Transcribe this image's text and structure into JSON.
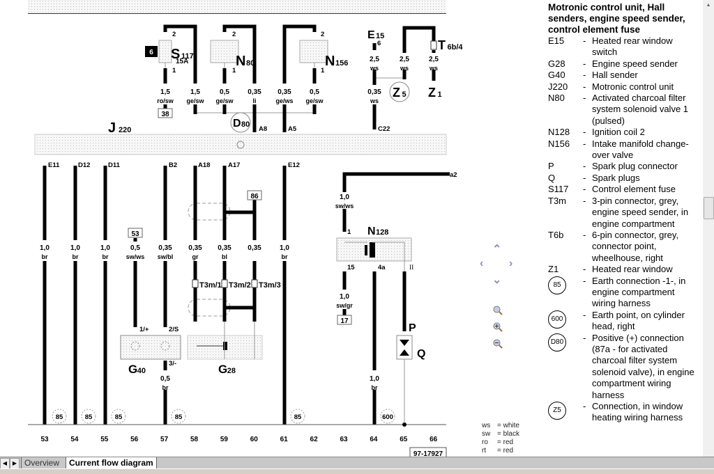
{
  "legend": {
    "title": "Motronic control unit, Hall senders, engine speed sender, control element fuse",
    "entries": [
      {
        "code": "E15",
        "desc": "Heated rear window switch"
      },
      {
        "code": "G28",
        "desc": "Engine speed sender"
      },
      {
        "code": "G40",
        "desc": "Hall sender"
      },
      {
        "code": "J220",
        "desc": "Motronic control unit"
      },
      {
        "code": "N80",
        "desc": "Activated charcoal filter system solenoid valve 1 (pulsed)"
      },
      {
        "code": "N128",
        "desc": "Ignition coil 2"
      },
      {
        "code": "N156",
        "desc": "Intake manifold change-over valve"
      },
      {
        "code": "P",
        "desc": "Spark plug connector"
      },
      {
        "code": "Q",
        "desc": "Spark plugs"
      },
      {
        "code": "S117",
        "desc": "Control element fuse"
      },
      {
        "code": "T3m",
        "desc": "3-pin connector, grey, engine speed sender, in engine compartment"
      },
      {
        "code": "T6b",
        "desc": "6-pin connector, grey, connector point, wheelhouse, right"
      },
      {
        "code": "Z1",
        "desc": "Heated rear window"
      }
    ],
    "circled_entries": [
      {
        "code": "85",
        "desc": "Earth connection -1-, in engine compartment wiring harness"
      },
      {
        "code": "600",
        "desc": "Earth point, on cylinder head, right"
      },
      {
        "code": "D80",
        "desc": "Positive (+) connection (87a - for activated charcoal filter system solenoid valve), in engine compartment wiring harness"
      },
      {
        "code": "Z5",
        "desc": "Connection, in window heating wiring harness"
      }
    ],
    "separator": "-"
  },
  "color_codes": [
    {
      "abbr": "ws",
      "name": "white"
    },
    {
      "abbr": "sw",
      "name": "black"
    },
    {
      "abbr": "ro",
      "name": "red"
    },
    {
      "abbr": "rt",
      "name": "red"
    }
  ],
  "diagram": {
    "components": {
      "s117": {
        "code": "S",
        "num": "117",
        "rating": "15A",
        "fuse_no": "6"
      },
      "n80": {
        "code": "N",
        "num": "80"
      },
      "n156": {
        "code": "N",
        "num": "156"
      },
      "j220": {
        "code": "J",
        "num": "220"
      },
      "e15": {
        "code": "E",
        "num": "15"
      },
      "z5": {
        "code": "Z",
        "num": "5"
      },
      "z1": {
        "code": "Z",
        "num": "1"
      },
      "t6b": {
        "code": "T",
        "num": "6b/4"
      },
      "d80": {
        "code": "D",
        "num": "80"
      },
      "n128": {
        "code": "N",
        "num": "128"
      },
      "g40": {
        "code": "G",
        "num": "40"
      },
      "g28": {
        "code": "G",
        "num": "28"
      },
      "p": {
        "code": "P"
      },
      "q": {
        "code": "Q"
      }
    },
    "wires": [
      {
        "size": "1,5",
        "color": "ro/sw"
      },
      {
        "size": "1,5",
        "color": "ge/sw"
      },
      {
        "size": "0,5",
        "color": "ge/sw"
      },
      {
        "size": "0,35",
        "color": "li"
      },
      {
        "size": "0,35",
        "color": "ge/ws"
      },
      {
        "size": "0,5",
        "color": "ge/sw"
      },
      {
        "size": "2,5",
        "color": "ws"
      },
      {
        "size": "2,5",
        "color": "ws"
      },
      {
        "size": "2,5",
        "color": "ws"
      },
      {
        "size": "0,35",
        "color": "ws"
      },
      {
        "size": "1,0",
        "color": "br"
      },
      {
        "size": "1,0",
        "color": "br"
      },
      {
        "size": "1,0",
        "color": "br"
      },
      {
        "size": "0,5",
        "color": "sw/ws"
      },
      {
        "size": "0,35",
        "color": "sw/bl"
      },
      {
        "size": "0,35",
        "color": "gr"
      },
      {
        "size": "0,35",
        "color": "bl"
      },
      {
        "size": "0,35",
        "color": ""
      },
      {
        "size": "1,0",
        "color": "br"
      },
      {
        "size": "1,0",
        "color": "sw/ws"
      },
      {
        "size": "1,0",
        "color": "sw/gr"
      },
      {
        "size": "0,5",
        "color": "br"
      },
      {
        "size": "1,0",
        "color": "br"
      }
    ],
    "pins": [
      "2",
      "1",
      "2",
      "1",
      "2",
      "1",
      "A8",
      "A5",
      "C22",
      "E11",
      "D12",
      "D11",
      "B2",
      "A18",
      "A17",
      "E12",
      "1",
      "15",
      "4a",
      "II",
      "1/+",
      "2/S",
      "3/-",
      "6",
      "a2"
    ],
    "ref_boxes": [
      "38",
      "53",
      "86",
      "17"
    ],
    "connectors": [
      "T3m/1",
      "T3m/2",
      "T3m/3"
    ],
    "earth_points": [
      "85",
      "85",
      "85",
      "85",
      "85",
      "600"
    ],
    "columns": [
      "53",
      "54",
      "55",
      "56",
      "57",
      "58",
      "59",
      "60",
      "61",
      "62",
      "63",
      "64",
      "65",
      "66"
    ],
    "drawing_no": "97-17927"
  },
  "nav": {
    "icons": [
      "pan-up-icon",
      "pan-left-icon",
      "pan-right-icon",
      "pan-down-icon",
      "zoom-fit-icon",
      "zoom-in-icon",
      "zoom-out-icon"
    ]
  },
  "tabs": [
    {
      "label": "Overview",
      "active": false
    },
    {
      "label": "Current flow diagram",
      "active": true
    }
  ]
}
